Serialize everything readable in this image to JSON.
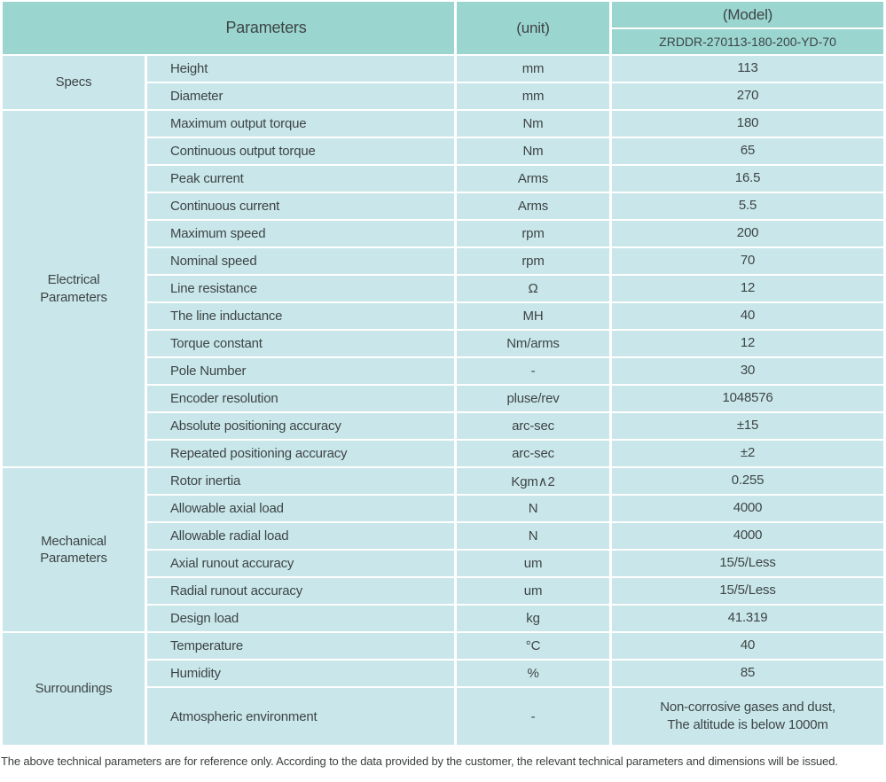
{
  "colors": {
    "header_bg": "#9ad5cf",
    "cell_bg": "#c9e7ea",
    "gap": "#ffffff",
    "text": "#3e4446",
    "footer_text": "#3b3f40"
  },
  "table": {
    "header": {
      "parameters": "Parameters",
      "unit": "(unit)",
      "model": "(Model)",
      "model_value": "ZRDDR-270113-180-200-YD-70"
    },
    "sections": [
      {
        "group": "Specs",
        "rows": [
          {
            "name": "Height",
            "unit": "mm",
            "value": "113"
          },
          {
            "name": "Diameter",
            "unit": "mm",
            "value": "270"
          }
        ]
      },
      {
        "group": "Electrical\nParameters",
        "rows": [
          {
            "name": "Maximum output torque",
            "unit": "Nm",
            "value": "180"
          },
          {
            "name": "Continuous output torque",
            "unit": "Nm",
            "value": "65"
          },
          {
            "name": "Peak current",
            "unit": "Arms",
            "value": "16.5"
          },
          {
            "name": "Continuous current",
            "unit": "Arms",
            "value": "5.5"
          },
          {
            "name": "Maximum speed",
            "unit": "rpm",
            "value": "200"
          },
          {
            "name": "Nominal speed",
            "unit": "rpm",
            "value": "70"
          },
          {
            "name": "Line resistance",
            "unit": "Ω",
            "value": "12"
          },
          {
            "name": "The line inductance",
            "unit": "MH",
            "value": "40"
          },
          {
            "name": "Torque constant",
            "unit": "Nm/arms",
            "value": "12"
          },
          {
            "name": "Pole Number",
            "unit": "-",
            "value": "30"
          },
          {
            "name": "Encoder resolution",
            "unit": "pluse/rev",
            "value": "1048576"
          },
          {
            "name": "Absolute positioning accuracy",
            "unit": "arc-sec",
            "value": "±15"
          },
          {
            "name": "Repeated positioning accuracy",
            "unit": "arc-sec",
            "value": "±2"
          }
        ]
      },
      {
        "group": "Mechanical\nParameters",
        "rows": [
          {
            "name": "Rotor inertia",
            "unit": "Kgm∧2",
            "value": "0.255"
          },
          {
            "name": "Allowable axial load",
            "unit": "N",
            "value": "4000"
          },
          {
            "name": "Allowable radial load",
            "unit": "N",
            "value": "4000"
          },
          {
            "name": "Axial runout accuracy",
            "unit": "um",
            "value": "15/5/Less"
          },
          {
            "name": "Radial runout accuracy",
            "unit": "um",
            "value": "15/5/Less"
          },
          {
            "name": "Design load",
            "unit": "kg",
            "value": "41.319"
          }
        ]
      },
      {
        "group": "Surroundings",
        "rows": [
          {
            "name": "Temperature",
            "unit": "°C",
            "value": "40"
          },
          {
            "name": "Humidity",
            "unit": "%",
            "value": "85"
          },
          {
            "name": "Atmospheric environment",
            "unit": "-",
            "value": "Non-corrosive gases and dust,\nThe altitude is below 1000m",
            "tall": true
          }
        ]
      }
    ]
  },
  "footer": {
    "note": "The above technical parameters are for reference only. According to the data provided by the customer, the relevant technical parameters and dimensions will be issued."
  }
}
